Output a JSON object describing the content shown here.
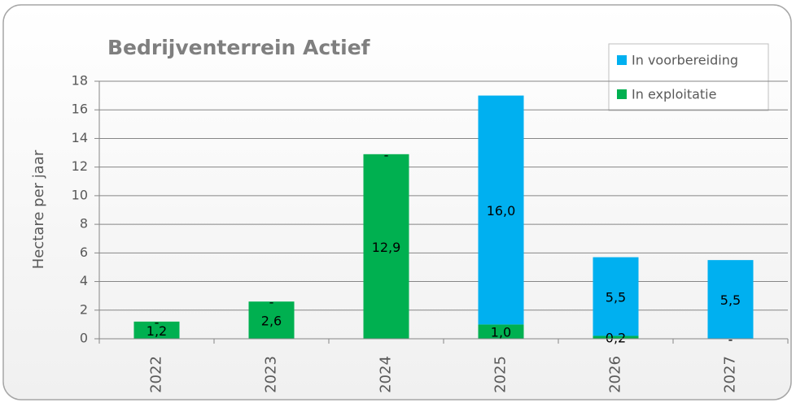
{
  "chart_data": {
    "type": "stacked_bar",
    "title": "Bedrijventerrein Actief",
    "y_axis_label": "Hectare per jaar",
    "categories": [
      "2022",
      "2023",
      "2024",
      "2025",
      "2026",
      "2027"
    ],
    "series": [
      {
        "name": "In exploitatie",
        "color": "#00b050",
        "values": [
          1.2,
          2.6,
          12.9,
          1.0,
          0.2,
          0
        ],
        "value_labels": [
          "1,2",
          "2,6",
          "12,9",
          "1,0",
          "0,2",
          "-"
        ]
      },
      {
        "name": "In voorbereiding",
        "color": "#00b0f0",
        "values": [
          0,
          0,
          0,
          16.0,
          5.5,
          5.5
        ],
        "value_labels": [
          "-",
          "-",
          "-",
          "16,0",
          "5,5",
          "5,5"
        ]
      }
    ],
    "ylim": [
      0,
      18
    ],
    "yticks": [
      0,
      2,
      4,
      6,
      8,
      10,
      12,
      14,
      16,
      18
    ],
    "grid": true,
    "legend": "top-right"
  }
}
